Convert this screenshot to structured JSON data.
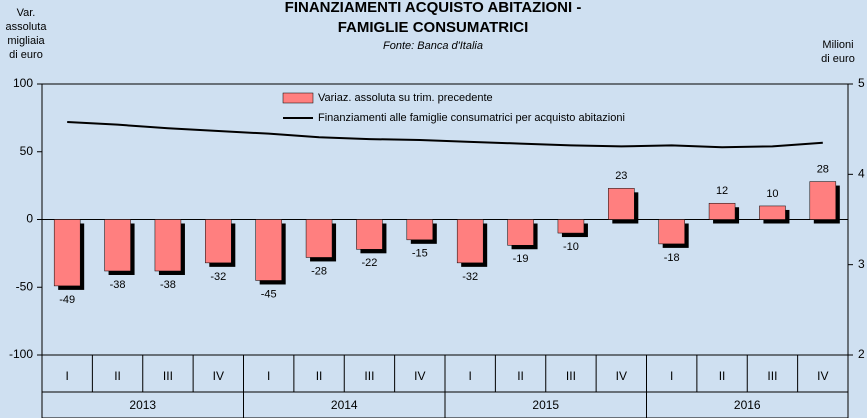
{
  "chart_data": {
    "type": "bar",
    "title": [
      "FINANZIAMENTI ACQUISTO ABITAZIONI -",
      "FAMIGLIE CONSUMATRICI"
    ],
    "subtitle": "Fonte: Banca d'Italia",
    "ylabel": [
      "Var.",
      "assoluta",
      "migliaia",
      "di euro"
    ],
    "y2label": [
      "Milioni",
      "di euro"
    ],
    "categories": [
      "I",
      "II",
      "III",
      "IV",
      "I",
      "II",
      "III",
      "IV",
      "I",
      "II",
      "III",
      "IV",
      "I",
      "II",
      "III",
      "IV"
    ],
    "x_groups": [
      "2013",
      "2014",
      "2015",
      "2016"
    ],
    "series": [
      {
        "name": "Variaz. assoluta su trim. precedente",
        "color": "#ff7f7f",
        "type": "bar",
        "values": [
          -49,
          -38,
          -38,
          -32,
          -45,
          -28,
          -22,
          -15,
          -32,
          -19,
          -10,
          23,
          -18,
          12,
          10,
          28
        ]
      },
      {
        "name": "Finanziamenti alle famiglie consumatrici per acquisto abitazioni",
        "color": "#000000",
        "type": "line",
        "axis": "y2",
        "values": [
          458000,
          455000,
          451000,
          448000,
          445000,
          441000,
          439000,
          438000,
          436000,
          434000,
          432000,
          431000,
          432000,
          430000,
          431000,
          435000
        ]
      }
    ],
    "ylim": [
      -100,
      100
    ],
    "yticks": [
      -100,
      -50,
      0,
      50,
      100
    ],
    "y2lim": [
      200000,
      500000
    ],
    "y2ticks": [
      {
        "value": 200000,
        "label": "2"
      },
      {
        "value": 300000,
        "label": "3"
      },
      {
        "value": 400000,
        "label": "4"
      },
      {
        "value": 500000,
        "label": "5"
      }
    ]
  }
}
